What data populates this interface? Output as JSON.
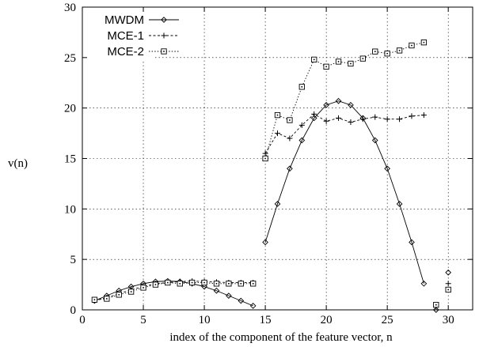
{
  "chart_data": {
    "type": "line",
    "xlabel": "index of the component of the feature vector, n",
    "ylabel": "v(n)",
    "xlim": [
      0,
      32
    ],
    "ylim": [
      0,
      30
    ],
    "xticks": [
      0,
      5,
      10,
      15,
      20,
      25,
      30
    ],
    "yticks": [
      0,
      5,
      10,
      15,
      20,
      25,
      30
    ],
    "grid": true,
    "legend_position": "top-left",
    "series": [
      {
        "name": "MWDM",
        "marker": "diamond",
        "line_style": "solid",
        "segments": [
          {
            "x": [
              1,
              2,
              3,
              4,
              5,
              6,
              7,
              8,
              9,
              10,
              11,
              12,
              13,
              14
            ],
            "y": [
              0.9,
              1.4,
              1.9,
              2.3,
              2.6,
              2.8,
              2.85,
              2.8,
              2.6,
              2.3,
              1.9,
              1.4,
              0.9,
              0.4
            ]
          },
          {
            "x": [
              15,
              16,
              17,
              18,
              19,
              20,
              21,
              22,
              23,
              24,
              25,
              26,
              27,
              28
            ],
            "y": [
              6.7,
              10.5,
              14.0,
              16.8,
              19.0,
              20.3,
              20.7,
              20.3,
              19.0,
              16.8,
              14.0,
              10.5,
              6.7,
              2.6
            ]
          },
          {
            "x": [
              29
            ],
            "y": [
              0.0
            ]
          },
          {
            "x": [
              30
            ],
            "y": [
              3.7
            ]
          }
        ]
      },
      {
        "name": "MCE-1",
        "marker": "plus",
        "line_style": "dashed",
        "segments": [
          {
            "x": [
              1,
              2,
              3,
              4,
              5,
              6,
              7,
              8,
              9,
              10,
              11,
              12,
              13,
              14
            ],
            "y": [
              0.9,
              1.2,
              1.6,
              2.0,
              2.3,
              2.6,
              2.7,
              2.8,
              2.85,
              2.8,
              2.75,
              2.7,
              2.7,
              2.7
            ]
          },
          {
            "x": [
              15,
              16,
              17,
              18,
              19,
              20,
              21,
              22,
              23,
              24,
              25,
              26,
              27,
              28
            ],
            "y": [
              15.5,
              17.5,
              17.0,
              18.3,
              19.4,
              18.7,
              19.0,
              18.6,
              18.9,
              19.1,
              18.9,
              18.9,
              19.2,
              19.3
            ]
          },
          {
            "x": [
              29
            ],
            "y": [
              0.3
            ]
          },
          {
            "x": [
              30
            ],
            "y": [
              2.6
            ]
          }
        ]
      },
      {
        "name": "MCE-2",
        "marker": "square",
        "line_style": "dotted",
        "segments": [
          {
            "x": [
              1,
              2,
              3,
              4,
              5,
              6,
              7,
              8,
              9,
              10,
              11,
              12,
              13,
              14
            ],
            "y": [
              1.0,
              1.1,
              1.5,
              1.8,
              2.2,
              2.5,
              2.7,
              2.6,
              2.7,
              2.7,
              2.6,
              2.6,
              2.6,
              2.6
            ]
          },
          {
            "x": [
              15,
              16,
              17,
              18,
              19,
              20,
              21,
              22,
              23,
              24,
              25,
              26,
              27,
              28
            ],
            "y": [
              15.0,
              19.3,
              18.8,
              22.1,
              24.8,
              24.1,
              24.6,
              24.4,
              24.9,
              25.6,
              25.4,
              25.7,
              26.2,
              26.5
            ]
          },
          {
            "x": [
              29
            ],
            "y": [
              0.5
            ]
          },
          {
            "x": [
              30
            ],
            "y": [
              2.0
            ]
          }
        ]
      }
    ]
  }
}
